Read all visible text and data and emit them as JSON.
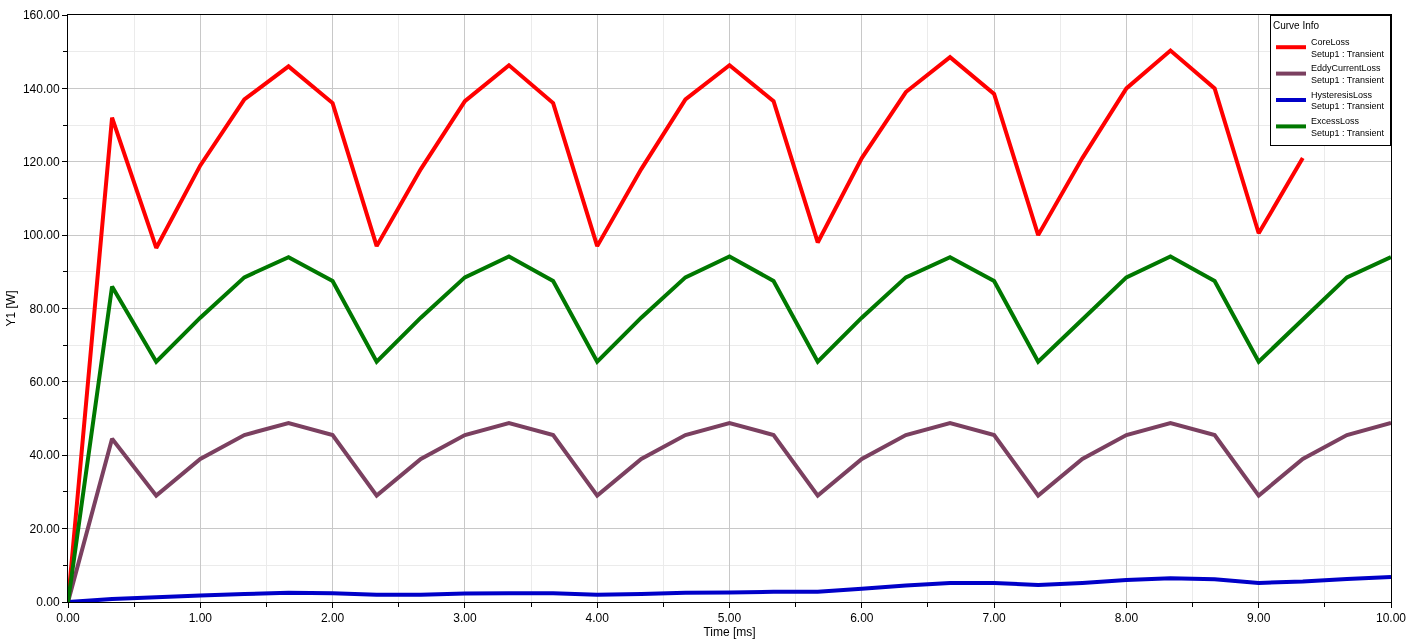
{
  "chart_data": {
    "type": "line",
    "xlabel": "Time [ms]",
    "ylabel": "Y1 [W]",
    "legend_title": "Curve Info",
    "legend": "top right",
    "grid": true,
    "marker": "none",
    "line_style": "solid",
    "x": [
      0,
      0.333,
      0.667,
      1.0,
      1.333,
      1.667,
      2.0,
      2.333,
      2.667,
      3.0,
      3.333,
      3.667,
      4.0,
      4.333,
      4.667,
      5.0,
      5.333,
      5.667,
      6.0,
      6.333,
      6.667,
      7.0,
      7.333,
      7.667,
      8.0,
      8.333,
      8.667,
      9.0,
      9.333,
      9.667,
      10.0
    ],
    "xlim": [
      0,
      10
    ],
    "xticks": [
      {
        "value": 0,
        "label": "0.00"
      },
      {
        "value": 1,
        "label": "1.00"
      },
      {
        "value": 2,
        "label": "2.00"
      },
      {
        "value": 3,
        "label": "3.00"
      },
      {
        "value": 4,
        "label": "4.00"
      },
      {
        "value": 5,
        "label": "5.00"
      },
      {
        "value": 6,
        "label": "6.00"
      },
      {
        "value": 7,
        "label": "7.00"
      },
      {
        "value": 8,
        "label": "8.00"
      },
      {
        "value": 9,
        "label": "9.00"
      },
      {
        "value": 10,
        "label": "10.00"
      }
    ],
    "ylim": [
      0,
      160
    ],
    "yticks": [
      {
        "value": 0,
        "label": "0.00"
      },
      {
        "value": 20,
        "label": "20.00"
      },
      {
        "value": 40,
        "label": "40.00"
      },
      {
        "value": 60,
        "label": "60.00"
      },
      {
        "value": 80,
        "label": "80.00"
      },
      {
        "value": 100,
        "label": "100.00"
      },
      {
        "value": 120,
        "label": "120.00"
      },
      {
        "value": 140,
        "label": "140.00"
      },
      {
        "value": 160,
        "label": "160.00"
      }
    ],
    "series": [
      {
        "name": "CoreLoss\nSetup1 : Transient",
        "color": "#ff0000",
        "values": [
          0,
          132,
          96.5,
          119,
          137,
          146,
          136,
          97,
          118,
          136.5,
          146.3,
          136,
          97,
          118,
          137,
          146.3,
          136.5,
          98,
          121,
          139,
          148.5,
          138.5,
          100,
          121,
          140,
          150.3,
          140,
          100.5,
          121,
          null,
          null
        ]
      },
      {
        "name": "EddyCurrentLoss\nSetup1 : Transient",
        "color": "#7b4060",
        "values": [
          0,
          44.5,
          29,
          39,
          45.5,
          48.8,
          45.5,
          29,
          39,
          45.5,
          48.8,
          45.5,
          29,
          39,
          45.5,
          48.8,
          45.5,
          29,
          39,
          45.5,
          48.8,
          45.5,
          29,
          39,
          45.5,
          48.8,
          45.5,
          29,
          39,
          45.5,
          48.8
        ]
      },
      {
        "name": "HysteresisLoss\nSetup1 : Transient",
        "color": "#0000c8",
        "values": [
          0,
          0.8,
          1.3,
          1.8,
          2.2,
          2.5,
          2.4,
          2.0,
          2.0,
          2.3,
          2.4,
          2.4,
          2.0,
          2.2,
          2.5,
          2.6,
          2.8,
          2.8,
          3.6,
          4.5,
          5.2,
          5.2,
          4.6,
          5.2,
          6.0,
          6.5,
          6.2,
          5.2,
          5.6,
          6.3,
          6.8
        ]
      },
      {
        "name": "ExcessLoss\nSetup1 : Transient",
        "color": "#007800",
        "values": [
          0,
          86,
          65.5,
          77.5,
          88.5,
          94,
          87.5,
          65.5,
          77.5,
          88.5,
          94.2,
          87.5,
          65.5,
          77.5,
          88.5,
          94.2,
          87.5,
          65.5,
          77.5,
          88.5,
          94,
          87.5,
          65.5,
          77,
          88.5,
          94.2,
          87.5,
          65.5,
          77,
          88.5,
          94
        ]
      }
    ]
  }
}
